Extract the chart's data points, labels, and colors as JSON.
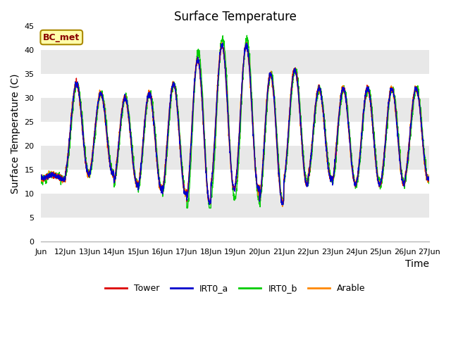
{
  "title": "Surface Temperature",
  "ylabel": "Surface Temperature (C)",
  "xlabel": "Time",
  "annotation": "BC_met",
  "ylim": [
    0,
    45
  ],
  "yticks": [
    0,
    5,
    10,
    15,
    20,
    25,
    30,
    35,
    40,
    45
  ],
  "colors": {
    "Tower": "#dd0000",
    "IRT0_a": "#0000cc",
    "IRT0_b": "#00cc00",
    "Arable": "#ff8800"
  },
  "plot_bg": "#f0f0f0",
  "band_colors": [
    "#ffffff",
    "#e8e8e8"
  ],
  "annotation_bg": "#ffffaa",
  "annotation_border": "#aa8800",
  "annotation_text_color": "#880000",
  "title_fontsize": 12,
  "axis_label_fontsize": 10,
  "tick_fontsize": 8,
  "daily_params": {
    "0": {
      "min": 13,
      "max": 14
    },
    "1": {
      "min": 14,
      "max": 33
    },
    "2": {
      "min": 14,
      "max": 31
    },
    "3": {
      "min": 12,
      "max": 30
    },
    "4": {
      "min": 11,
      "max": 31
    },
    "5": {
      "min": 10,
      "max": 33
    },
    "6": {
      "min": 8,
      "max": 38
    },
    "7": {
      "min": 11,
      "max": 41
    },
    "8": {
      "min": 11,
      "max": 41
    },
    "9": {
      "min": 8,
      "max": 35
    },
    "10": {
      "min": 12,
      "max": 36
    },
    "11": {
      "min": 13,
      "max": 32
    },
    "12": {
      "min": 12,
      "max": 32
    },
    "13": {
      "min": 12,
      "max": 32
    },
    "14": {
      "min": 12,
      "max": 32
    },
    "15": {
      "min": 13,
      "max": 32
    }
  }
}
